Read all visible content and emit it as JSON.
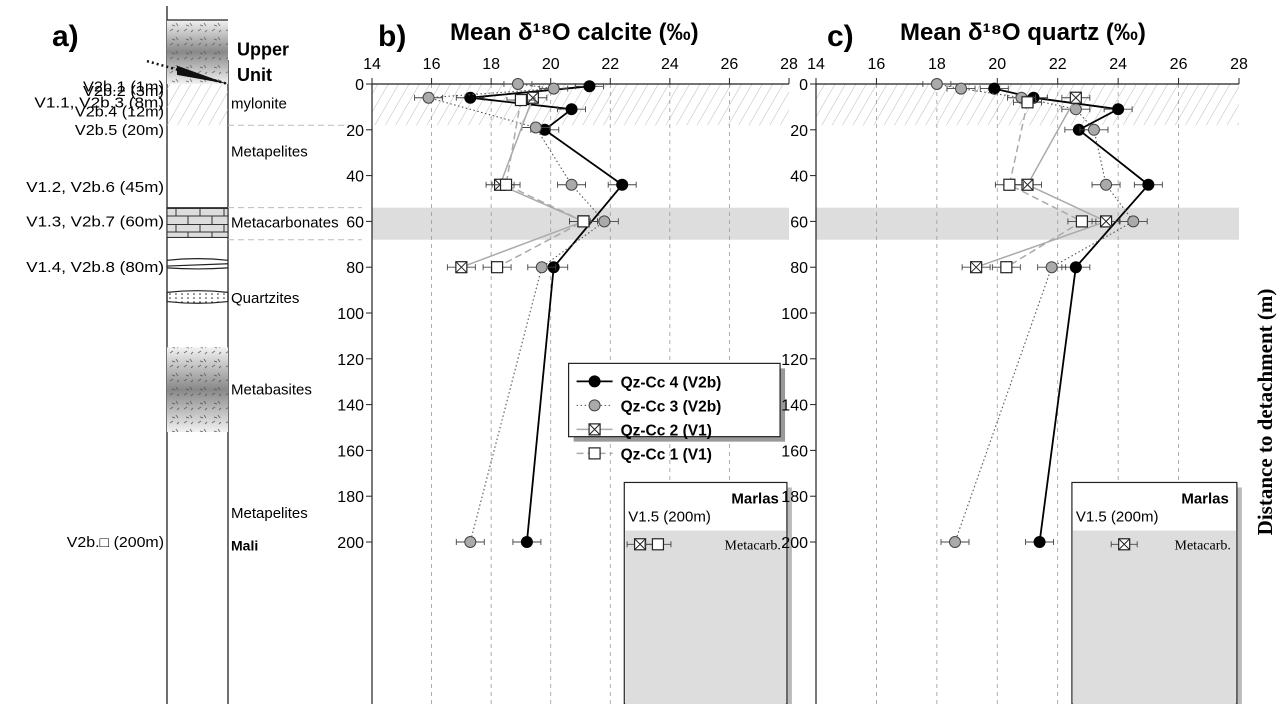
{
  "chart_data": [
    {
      "type": "table",
      "panel_label": "a)",
      "column": [
        {
          "sample": "V2b.1 (1m)",
          "depth": 1
        },
        {
          "sample": "V2b.2 (3m)",
          "depth": 3
        },
        {
          "sample": "V1.1, V2b.3 (8m)",
          "depth": 8
        },
        {
          "sample": "V2b.4 (12m)",
          "depth": 12
        },
        {
          "sample": "V2b.5 (20m)",
          "depth": 20
        },
        {
          "sample": "V1.2, V2b.6 (45m)",
          "depth": 45
        },
        {
          "sample": "V1.3, V2b.7 (60m)",
          "depth": 60
        },
        {
          "sample": "V1.4, V2b.8 (80m)",
          "depth": 80
        },
        {
          "sample": "V2b.□ (200m)",
          "depth": 200
        }
      ],
      "units": [
        {
          "name": "Upper",
          "depth": -15,
          "bold": true
        },
        {
          "name": "Unit",
          "depth": -4,
          "bold": true
        },
        {
          "name": "mylonite",
          "depth": 8,
          "bold": false
        },
        {
          "name": "Metapelites",
          "depth": 29,
          "bold": false
        },
        {
          "name": "Metacarbonates",
          "depth": 60,
          "bold": false
        },
        {
          "name": "Quartzites",
          "depth": 93,
          "bold": false
        },
        {
          "name": "Metabasites",
          "depth": 133,
          "bold": false
        },
        {
          "name": "Metapelites",
          "depth": 187,
          "bold": false
        },
        {
          "name": "Mali",
          "depth": 201,
          "bold": true
        }
      ]
    },
    {
      "type": "line",
      "panel_label": "b)",
      "title": "Mean δ¹⁸O calcite (‰)",
      "xlim": [
        14,
        28
      ],
      "ylim": [
        0,
        200
      ],
      "y_inverted": true,
      "xticks": [
        "14",
        "16",
        "18",
        "20",
        "22",
        "24",
        "26",
        "28"
      ],
      "yticks": [
        "0",
        "20",
        "40",
        "60",
        "80",
        "100",
        "120",
        "140",
        "160",
        "180",
        "200"
      ],
      "grid_x": "dashed",
      "shaded_depth_bands": [
        [
          0,
          18
        ],
        [
          54,
          68
        ]
      ],
      "series": [
        {
          "name": "Qz-Cc 4 (V2b)",
          "marker": "filled-circle",
          "line": "solid-black",
          "points": [
            [
              21.3,
              1
            ],
            [
              17.3,
              6
            ],
            [
              20.7,
              11
            ],
            [
              19.8,
              20
            ],
            [
              22.4,
              44
            ],
            [
              20.1,
              80
            ],
            [
              19.2,
              200
            ]
          ]
        },
        {
          "name": "Qz-Cc 3 (V2b)",
          "marker": "gray-circle",
          "line": "dotted",
          "points": [
            [
              18.9,
              0
            ],
            [
              20.1,
              2
            ],
            [
              15.9,
              6
            ],
            [
              19.5,
              19
            ],
            [
              20.7,
              44
            ],
            [
              21.8,
              60
            ],
            [
              19.7,
              80
            ],
            [
              17.3,
              200
            ]
          ]
        },
        {
          "name": "Qz-Cc 2 (V1)",
          "marker": "crossed-box",
          "line": "solid-gray",
          "points": [
            [
              19.4,
              6
            ],
            [
              18.3,
              44
            ],
            [
              21.1,
              60
            ],
            [
              17.0,
              80
            ]
          ]
        },
        {
          "name": "Qz-Cc 1 (V1)",
          "marker": "open-box",
          "line": "dashed-gray",
          "points": [
            [
              19.0,
              7
            ],
            [
              18.5,
              44
            ],
            [
              21.1,
              60
            ],
            [
              18.2,
              80
            ]
          ]
        }
      ],
      "inset": {
        "title": "Marlas",
        "label": "V1.5 (200m)",
        "band": "Metacarb.",
        "points": [
          {
            "marker": "crossed-box",
            "x": 23.0
          },
          {
            "marker": "open-box",
            "x": 23.6
          }
        ]
      }
    },
    {
      "type": "line",
      "panel_label": "c)",
      "title": "Mean δ¹⁸O quartz (‰)",
      "xlim": [
        14,
        28
      ],
      "ylim": [
        0,
        200
      ],
      "y_inverted": true,
      "xticks": [
        "14",
        "16",
        "18",
        "20",
        "22",
        "24",
        "26",
        "28"
      ],
      "yticks": [
        "0",
        "20",
        "40",
        "60",
        "80",
        "100",
        "120",
        "140",
        "160",
        "180",
        "200"
      ],
      "ylabel": "Distance to detachment (m)",
      "grid_x": "dashed",
      "shaded_depth_bands": [
        [
          0,
          18
        ],
        [
          54,
          68
        ]
      ],
      "series": [
        {
          "name": "Qz-Cc 4 (V2b)",
          "marker": "filled-circle",
          "line": "solid-black",
          "points": [
            [
              19.9,
              2
            ],
            [
              21.2,
              6
            ],
            [
              24.0,
              11
            ],
            [
              22.7,
              20
            ],
            [
              25.0,
              44
            ],
            [
              22.6,
              80
            ],
            [
              21.4,
              200
            ]
          ]
        },
        {
          "name": "Qz-Cc 3 (V2b)",
          "marker": "gray-circle",
          "line": "dotted",
          "points": [
            [
              18.0,
              0
            ],
            [
              18.8,
              2
            ],
            [
              20.8,
              6
            ],
            [
              22.6,
              11
            ],
            [
              23.2,
              20
            ],
            [
              23.6,
              44
            ],
            [
              24.5,
              60
            ],
            [
              21.8,
              80
            ],
            [
              18.6,
              200
            ]
          ]
        },
        {
          "name": "Qz-Cc 2 (V1)",
          "marker": "crossed-box",
          "line": "solid-gray",
          "points": [
            [
              22.6,
              6
            ],
            [
              21.0,
              44
            ],
            [
              23.6,
              60
            ],
            [
              19.3,
              80
            ]
          ]
        },
        {
          "name": "Qz-Cc 1 (V1)",
          "marker": "open-box",
          "line": "dashed-gray",
          "points": [
            [
              21.0,
              8
            ],
            [
              20.4,
              44
            ],
            [
              22.8,
              60
            ],
            [
              20.3,
              80
            ]
          ]
        }
      ],
      "inset": {
        "title": "Marlas",
        "label": "V1.5 (200m)",
        "band": "Metacarb.",
        "points": [
          {
            "marker": "crossed-box",
            "x": 24.2
          }
        ]
      }
    }
  ]
}
